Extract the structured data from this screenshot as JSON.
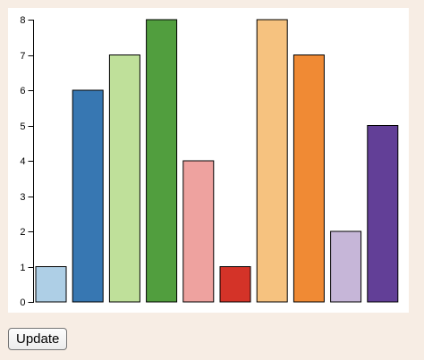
{
  "chart_data": {
    "type": "bar",
    "categories": [
      "",
      "",
      "",
      "",
      "",
      "",
      "",
      "",
      "",
      ""
    ],
    "values": [
      1,
      6,
      7,
      8,
      4,
      1,
      8,
      7,
      2,
      5
    ],
    "colors": [
      "#aecfe6",
      "#3777b2",
      "#bfe09a",
      "#519e3e",
      "#eea29f",
      "#d43328",
      "#f6c27f",
      "#f08a34",
      "#c6b6d8",
      "#623f97"
    ],
    "ylim": [
      0,
      8
    ],
    "yticks": [
      "0",
      "1",
      "2",
      "3",
      "4",
      "5",
      "6",
      "7",
      "8"
    ],
    "title": "",
    "xlabel": "",
    "ylabel": "",
    "grid": false
  },
  "controls": {
    "update_label": "Update"
  }
}
